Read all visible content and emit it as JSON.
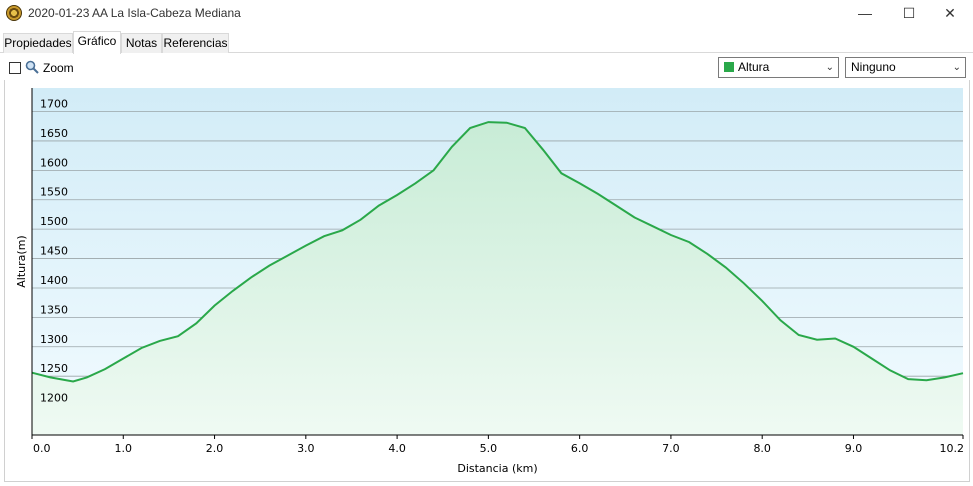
{
  "window": {
    "title": "2020-01-23 AA La Isla-Cabeza Mediana",
    "minimize": "—",
    "maximize": "☐",
    "close": "✕"
  },
  "tabs": [
    {
      "label": "Propiedades",
      "active": false
    },
    {
      "label": "Gráfico",
      "active": true
    },
    {
      "label": "Notas",
      "active": false
    },
    {
      "label": "Referencias",
      "active": false
    }
  ],
  "toolbar": {
    "zoom_label": "Zoom",
    "zoom_checked": false,
    "series_select": "Altura",
    "series_color": "#2aa84a",
    "second_select": "Ninguno"
  },
  "chart_data": {
    "type": "area",
    "xlabel": "Distancia  (km)",
    "ylabel": "Altura(m)",
    "xlim": [
      0,
      10.2
    ],
    "ylim": [
      1150,
      1740
    ],
    "x_ticks": [
      "0.0",
      "1.0",
      "2.0",
      "3.0",
      "4.0",
      "5.0",
      "6.0",
      "7.0",
      "8.0",
      "9.0",
      "10.2"
    ],
    "x_tick_values": [
      0,
      1,
      2,
      3,
      4,
      5,
      6,
      7,
      8,
      9,
      10.2
    ],
    "y_ticks": [
      1200,
      1250,
      1300,
      1350,
      1400,
      1450,
      1500,
      1550,
      1600,
      1650,
      1700
    ],
    "grid": true,
    "line_color": "#2aa84a",
    "series": [
      {
        "x": [
          0,
          0.2,
          0.45,
          0.6,
          0.8,
          1.0,
          1.2,
          1.4,
          1.6,
          1.8,
          2.0,
          2.2,
          2.4,
          2.6,
          2.8,
          3.0,
          3.2,
          3.4,
          3.6,
          3.8,
          4.0,
          4.2,
          4.4,
          4.6,
          4.8,
          5.0,
          5.2,
          5.4,
          5.6,
          5.8,
          6.0,
          6.2,
          6.4,
          6.6,
          6.8,
          7.0,
          7.2,
          7.4,
          7.6,
          7.8,
          8.0,
          8.2,
          8.4,
          8.6,
          8.8,
          9.0,
          9.2,
          9.4,
          9.6,
          9.8,
          10.0,
          10.2
        ],
        "y": [
          1256,
          1248,
          1241,
          1248,
          1262,
          1280,
          1298,
          1310,
          1318,
          1340,
          1370,
          1395,
          1418,
          1438,
          1455,
          1472,
          1488,
          1498,
          1516,
          1540,
          1558,
          1578,
          1600,
          1640,
          1672,
          1682,
          1681,
          1672,
          1635,
          1595,
          1578,
          1560,
          1540,
          1520,
          1505,
          1490,
          1478,
          1458,
          1435,
          1408,
          1378,
          1345,
          1320,
          1312,
          1314,
          1300,
          1280,
          1260,
          1245,
          1243,
          1248,
          1255
        ]
      }
    ]
  }
}
